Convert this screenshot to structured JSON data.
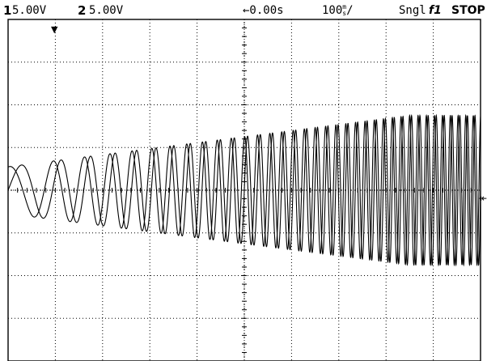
{
  "status_bar": {
    "ch1_number": "1",
    "ch1_scale": "5.00V",
    "ch2_number": "2",
    "ch2_scale": "5.00V",
    "time_delay": "←0.00s",
    "timebase_value": "100",
    "timebase_num": "m",
    "timebase_den": "s",
    "timebase_suffix": "/",
    "trigger_mode": "Sngl",
    "trigger_source": "f1",
    "run_state": "STOP"
  },
  "markers": {
    "trigger_position": "▼",
    "ground_level": "↞"
  },
  "display": {
    "grid_divisions_x": 10,
    "grid_divisions_y": 8,
    "grid_color": "#000000",
    "trace_color": "#000000",
    "background": "#ffffff"
  },
  "chart_data": {
    "type": "line",
    "series": [
      {
        "description_trace": 1,
        "start_cycles_per_div": 0.8,
        "end_cycles_per_div": 6.4,
        "start_amplitude_div": 0.55,
        "end_amplitude_div": 1.75,
        "phase": 0
      },
      {
        "description_trace": 2,
        "start_cycles_per_div": 0.8,
        "end_cycles_per_div": 6.4,
        "start_amplitude_div": 0.55,
        "end_amplitude_div": 1.75,
        "phase": 1.4
      }
    ],
    "xlim_div": [
      0,
      10
    ],
    "ylim_div": [
      -4,
      4
    ],
    "grid": true
  }
}
